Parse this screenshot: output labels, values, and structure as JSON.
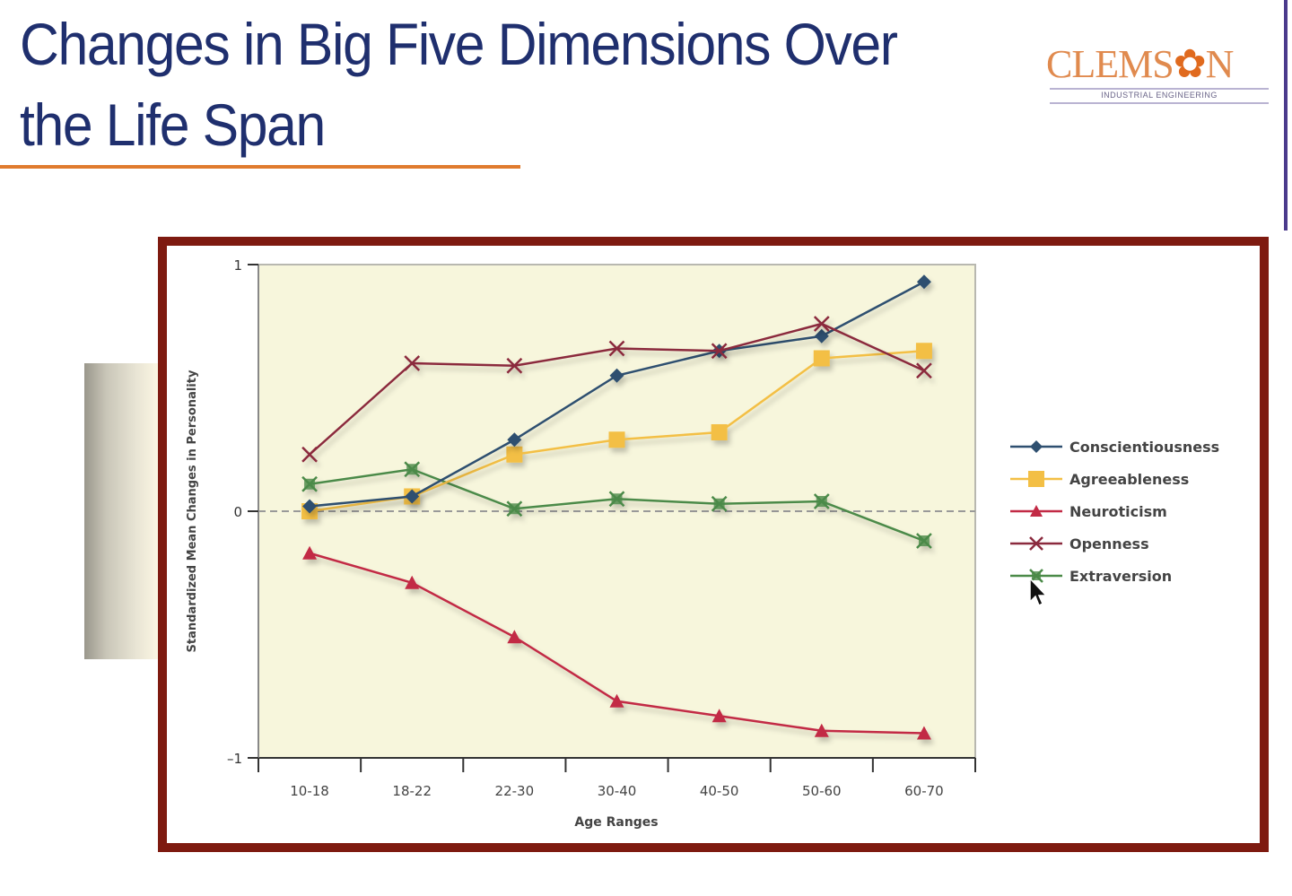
{
  "slide": {
    "title": "Changes in Big Five Dimensions Over the Life Span",
    "title_line1": "Changes in Big Five Dimensions Over",
    "title_line2": "the Life Span",
    "accent_color": "#e07b2e",
    "title_color": "#1f2f6e"
  },
  "logo": {
    "word_left": "CLEMS",
    "paw_icon": "tiger-paw-icon",
    "word_right": "N",
    "subtitle": "INDUSTRIAL ENGINEERING"
  },
  "chart_data": {
    "type": "line",
    "title": "",
    "xlabel": "Age Ranges",
    "ylabel": "Standardized Mean Changes in Personality",
    "categories": [
      "10-18",
      "18-22",
      "22-30",
      "30-40",
      "40-50",
      "50-60",
      "60-70"
    ],
    "ylim": [
      -1,
      1
    ],
    "yticks": [
      {
        "value": 1,
        "label": "1"
      },
      {
        "value": 0,
        "label": "0"
      },
      {
        "value": -1,
        "label": "–1"
      }
    ],
    "zero_line": "dashed",
    "grid": false,
    "plot_background": "#f7f6dc",
    "legend_position": "right",
    "series": [
      {
        "name": "Conscientiousness",
        "color": "#2f5070",
        "marker": "diamond",
        "values": [
          0.02,
          0.06,
          0.29,
          0.55,
          0.65,
          0.71,
          0.93
        ]
      },
      {
        "name": "Agreeableness",
        "color": "#f3bf45",
        "marker": "square",
        "values": [
          0.0,
          0.06,
          0.23,
          0.29,
          0.32,
          0.62,
          0.65
        ]
      },
      {
        "name": "Neuroticism",
        "color": "#c22a45",
        "marker": "triangle",
        "values": [
          -0.17,
          -0.29,
          -0.51,
          -0.77,
          -0.83,
          -0.89,
          -0.9
        ]
      },
      {
        "name": "Openness",
        "color": "#8b2a3e",
        "marker": "x",
        "values": [
          0.23,
          0.6,
          0.59,
          0.66,
          0.65,
          0.76,
          0.57
        ]
      },
      {
        "name": "Extraversion",
        "color": "#4b8a48",
        "marker": "x-box",
        "values": [
          0.11,
          0.17,
          0.01,
          0.05,
          0.03,
          0.04,
          -0.12
        ]
      }
    ]
  }
}
